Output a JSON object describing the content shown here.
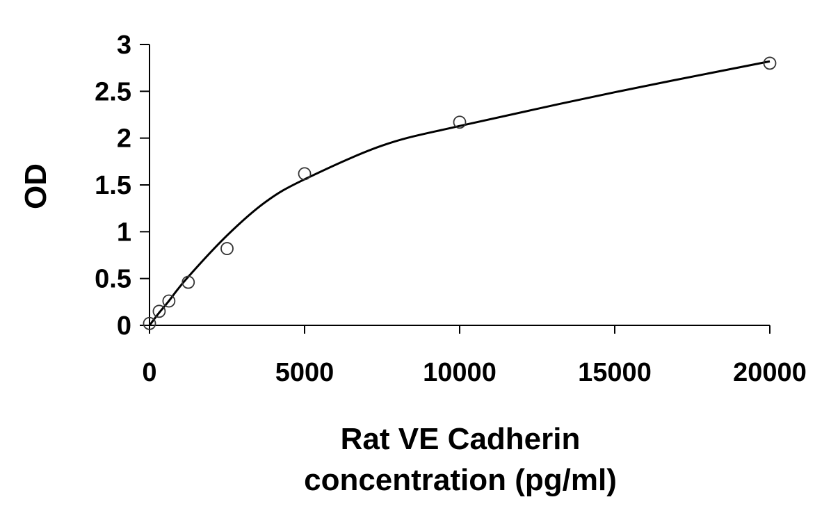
{
  "chart_data": {
    "type": "scatter",
    "title": "",
    "xlabel_lines": [
      "Rat VE Cadherin",
      "concentration (pg/ml)"
    ],
    "ylabel": "OD",
    "xlim": [
      0,
      20000
    ],
    "ylim": [
      0,
      3
    ],
    "x_ticks": [
      0,
      5000,
      10000,
      15000,
      20000
    ],
    "y_ticks": [
      0,
      0.5,
      1,
      1.5,
      2,
      2.5,
      3
    ],
    "x_tick_labels": [
      "0",
      "5000",
      "10000",
      "15000",
      "20000"
    ],
    "y_tick_labels": [
      "0",
      "0.5",
      "1",
      "1.5",
      "2",
      "2.5",
      "3"
    ],
    "grid": false,
    "legend": "none",
    "series": [
      {
        "marker": "open-circle",
        "x": [
          0,
          312.5,
          625,
          1250,
          2500,
          5000,
          10000,
          20000
        ],
        "y": [
          0.02,
          0.15,
          0.26,
          0.46,
          0.82,
          1.62,
          2.17,
          2.8
        ]
      }
    ],
    "fit_curve": {
      "type": "smooth",
      "x": [
        0,
        300,
        600,
        1200,
        2500,
        3750,
        5000,
        7500,
        10000,
        15000,
        20000
      ],
      "y": [
        0.0,
        0.13,
        0.25,
        0.5,
        0.96,
        1.32,
        1.56,
        1.92,
        2.13,
        2.49,
        2.82
      ]
    },
    "colors": {
      "axis": "#000000",
      "marker_stroke": "#333333",
      "curve": "#000000"
    }
  }
}
